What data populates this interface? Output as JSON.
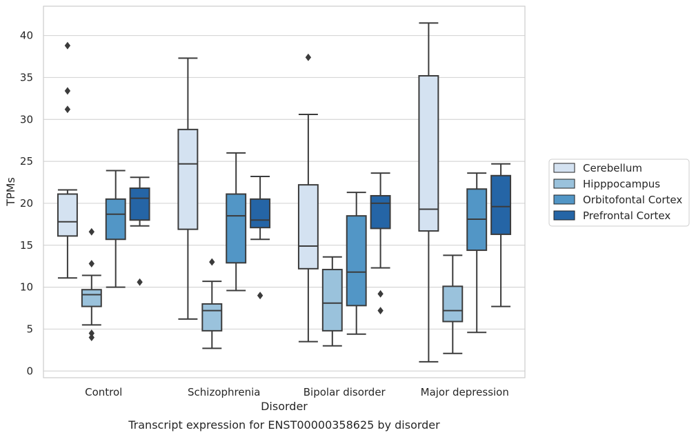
{
  "chart_data": {
    "type": "box",
    "title": "",
    "caption": "Transcript expression for ENST00000358625 by disorder",
    "xlabel": "Disorder",
    "ylabel": "TPMs",
    "ylim": [
      -0.8,
      43.5
    ],
    "yticks": [
      0,
      5,
      10,
      15,
      20,
      25,
      30,
      35,
      40
    ],
    "grid": "horizontal",
    "legend_position": "right",
    "categories": [
      "Control",
      "Schizophrenia",
      "Bipolar disorder",
      "Major depression"
    ],
    "series": [
      {
        "name": "Cerebellum",
        "color": "#d4e2f1",
        "boxes": [
          {
            "whisker_low": 11.1,
            "q1": 16.1,
            "median": 17.8,
            "q3": 21.1,
            "whisker_high": 21.6,
            "outliers": [
              31.2,
              33.4,
              38.8
            ]
          },
          {
            "whisker_low": 6.2,
            "q1": 16.9,
            "median": 24.7,
            "q3": 28.8,
            "whisker_high": 37.3,
            "outliers": []
          },
          {
            "whisker_low": 3.5,
            "q1": 12.2,
            "median": 14.9,
            "q3": 22.2,
            "whisker_high": 30.6,
            "outliers": [
              37.4
            ]
          },
          {
            "whisker_low": 1.1,
            "q1": 16.7,
            "median": 19.3,
            "q3": 35.2,
            "whisker_high": 41.5,
            "outliers": []
          }
        ]
      },
      {
        "name": "Hipppocampus",
        "color": "#9ac2dc",
        "boxes": [
          {
            "whisker_low": 5.5,
            "q1": 7.7,
            "median": 9.1,
            "q3": 9.7,
            "whisker_high": 11.4,
            "outliers": [
              4.0,
              4.5,
              12.8,
              16.6
            ]
          },
          {
            "whisker_low": 2.7,
            "q1": 4.8,
            "median": 7.2,
            "q3": 8.0,
            "whisker_high": 10.7,
            "outliers": [
              13.0
            ]
          },
          {
            "whisker_low": 3.0,
            "q1": 4.8,
            "median": 8.1,
            "q3": 12.1,
            "whisker_high": 13.6,
            "outliers": []
          },
          {
            "whisker_low": 2.1,
            "q1": 5.9,
            "median": 7.2,
            "q3": 10.1,
            "whisker_high": 13.8,
            "outliers": []
          }
        ]
      },
      {
        "name": "Orbitofontal Cortex",
        "color": "#5296c6",
        "boxes": [
          {
            "whisker_low": 10.0,
            "q1": 15.7,
            "median": 18.7,
            "q3": 20.5,
            "whisker_high": 23.9,
            "outliers": []
          },
          {
            "whisker_low": 9.6,
            "q1": 12.9,
            "median": 18.5,
            "q3": 21.1,
            "whisker_high": 26.0,
            "outliers": []
          },
          {
            "whisker_low": 4.4,
            "q1": 7.8,
            "median": 11.8,
            "q3": 18.5,
            "whisker_high": 21.3,
            "outliers": []
          },
          {
            "whisker_low": 4.6,
            "q1": 14.4,
            "median": 18.1,
            "q3": 21.7,
            "whisker_high": 23.6,
            "outliers": []
          }
        ]
      },
      {
        "name": "Prefrontal Cortex",
        "color": "#2565a6",
        "boxes": [
          {
            "whisker_low": 17.3,
            "q1": 18.0,
            "median": 20.6,
            "q3": 21.8,
            "whisker_high": 23.1,
            "outliers": [
              10.6
            ]
          },
          {
            "whisker_low": 15.7,
            "q1": 17.1,
            "median": 18.0,
            "q3": 20.5,
            "whisker_high": 23.2,
            "outliers": [
              9.0
            ]
          },
          {
            "whisker_low": 12.3,
            "q1": 17.0,
            "median": 20.0,
            "q3": 20.9,
            "whisker_high": 23.6,
            "outliers": [
              7.2,
              9.2
            ]
          },
          {
            "whisker_low": 7.7,
            "q1": 16.3,
            "median": 19.6,
            "q3": 23.3,
            "whisker_high": 24.7,
            "outliers": []
          }
        ]
      }
    ]
  }
}
